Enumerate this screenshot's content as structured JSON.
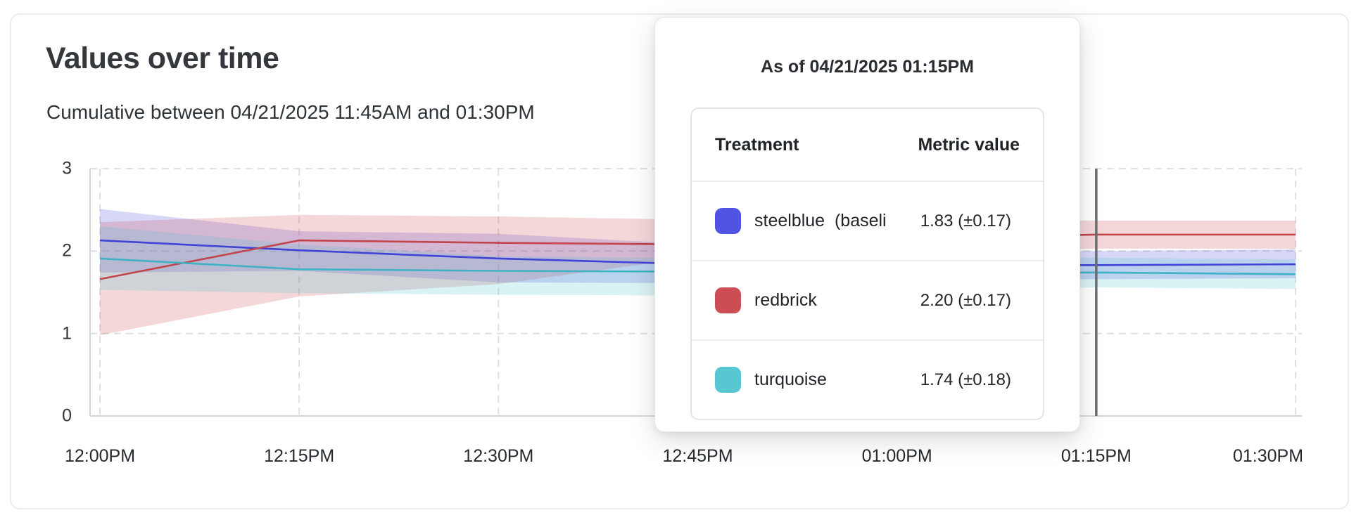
{
  "page": {
    "title": "Values over time",
    "subtitle": "Cumulative between 04/21/2025 11:45AM and 01:30PM"
  },
  "tooltip": {
    "title": "As of 04/21/2025 01:15PM",
    "col_treatment": "Treatment",
    "col_metric": "Metric value",
    "rows": [
      {
        "label": "steelblue  (baseli",
        "value": "1.83 (±0.17)",
        "color": "#5153e3"
      },
      {
        "label": "redbrick",
        "value": "2.20 (±0.17)",
        "color": "#cb4e55"
      },
      {
        "label": "turquoise",
        "value": "1.74 (±0.18)",
        "color": "#59c7d2"
      }
    ]
  },
  "chart_data": {
    "type": "line",
    "title": "Values over time",
    "subtitle": "Cumulative between 04/21/2025 11:45AM and 01:30PM",
    "x_labels": [
      "12:00PM",
      "12:15PM",
      "12:30PM",
      "12:45PM",
      "01:00PM",
      "01:15PM",
      "01:30PM"
    ],
    "y_ticks": [
      0,
      1,
      2,
      3
    ],
    "ylim": [
      0,
      3
    ],
    "grid": "dashed",
    "legend": "none",
    "hover": {
      "x_label": "01:15PM",
      "x_index": 5
    },
    "colors": {
      "gridline": "#dcdddf",
      "axis": "#d3d6d9",
      "hover_line": "#6b6f73"
    },
    "series": [
      {
        "id": "steelblue",
        "name": "steelblue  (baseli",
        "line_color": "#4143d6",
        "band_color": "#4b4be0",
        "band_opacity": 0.22,
        "values": [
          2.13,
          2.01,
          1.91,
          1.84,
          1.83,
          1.83,
          1.84
        ],
        "band_high": [
          2.51,
          2.24,
          2.21,
          2.08,
          2.03,
          2.0,
          2.02
        ],
        "band_low": [
          1.74,
          1.76,
          1.62,
          1.61,
          1.63,
          1.66,
          1.67
        ]
      },
      {
        "id": "redbrick",
        "name": "redbrick",
        "line_color": "#c2444c",
        "band_color": "#c84b52",
        "band_opacity": 0.22,
        "values": [
          1.66,
          2.13,
          2.1,
          2.08,
          2.15,
          2.2,
          2.2
        ],
        "band_high": [
          2.35,
          2.44,
          2.42,
          2.38,
          2.38,
          2.37,
          2.37
        ],
        "band_low": [
          0.98,
          1.45,
          1.6,
          1.93,
          1.98,
          2.03,
          2.03
        ]
      },
      {
        "id": "turquoise",
        "name": "turquoise",
        "line_color": "#41b2c5",
        "band_color": "#54c3cf",
        "band_opacity": 0.22,
        "values": [
          1.91,
          1.78,
          1.76,
          1.75,
          1.74,
          1.74,
          1.72
        ],
        "band_high": [
          2.3,
          2.08,
          1.94,
          1.91,
          1.92,
          1.92,
          1.9
        ],
        "band_low": [
          1.53,
          1.49,
          1.47,
          1.46,
          1.5,
          1.56,
          1.54
        ]
      }
    ]
  }
}
